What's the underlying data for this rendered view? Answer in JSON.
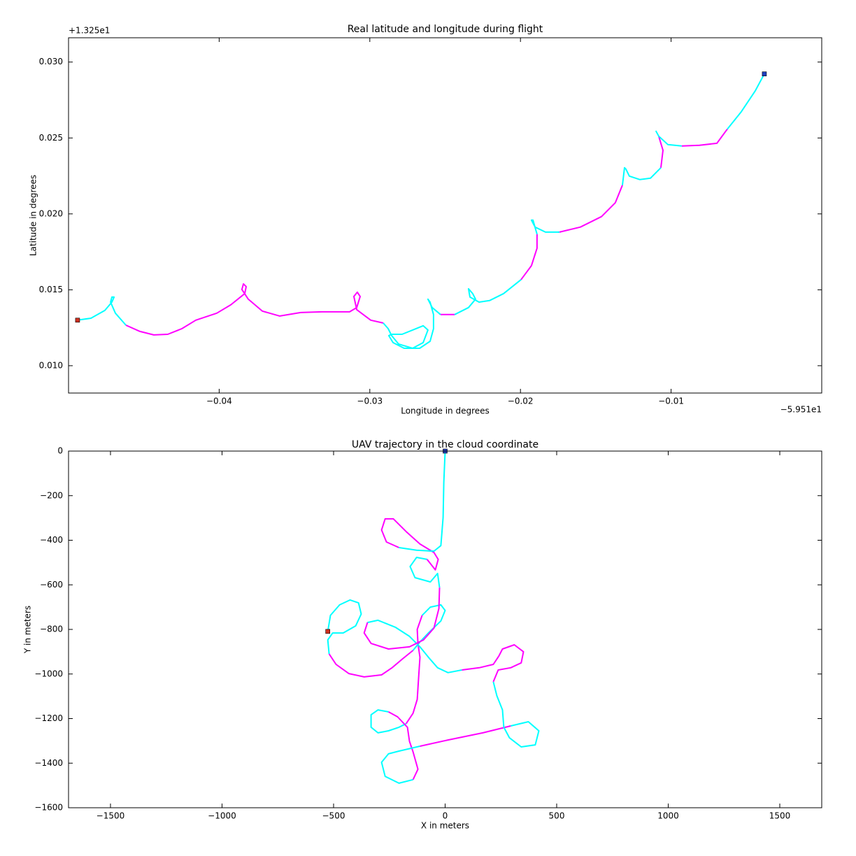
{
  "chart_data": [
    {
      "type": "line",
      "title": "Real latitude and longitude during flight",
      "xlabel": "Longitude in degrees",
      "ylabel": "Latitude in degrees",
      "x_offset_label": "−5.951e1",
      "y_offset_label": "+1.325e1",
      "xlim": [
        -0.05,
        0
      ],
      "ylim": [
        0.0082,
        0.0316
      ],
      "xticks": [
        {
          "value": -0.04,
          "label": "−0.04"
        },
        {
          "value": -0.03,
          "label": "−0.03"
        },
        {
          "value": -0.02,
          "label": "−0.02"
        },
        {
          "value": -0.01,
          "label": "−0.01"
        }
      ],
      "yticks": [
        {
          "value": 0.01,
          "label": "0.010"
        },
        {
          "value": 0.015,
          "label": "0.015"
        },
        {
          "value": 0.02,
          "label": "0.020"
        },
        {
          "value": 0.025,
          "label": "0.025"
        },
        {
          "value": 0.03,
          "label": "0.030"
        }
      ],
      "start_marker_color": "#d03020",
      "end_marker_color": "#1f3fbf",
      "series": [
        {
          "color": "#00ffff",
          "x": [
            -0.0494,
            -0.04851,
            -0.04759,
            -0.04712,
            -0.04698,
            -0.04712,
            -0.04721,
            -0.04689,
            -0.04619
          ],
          "y": [
            0.013,
            0.01313,
            0.01364,
            0.01419,
            0.01452,
            0.01452,
            0.01419,
            0.01346,
            0.01267
          ]
        },
        {
          "color": "#ff00ff",
          "x": [
            -0.04619,
            -0.04526,
            -0.04434,
            -0.04341,
            -0.04248,
            -0.04155,
            -0.04016,
            -0.03923,
            -0.0383,
            -0.03821,
            -0.03839,
            -0.03849,
            -0.03807,
            -0.03714,
            -0.03598,
            -0.03459,
            -0.03319,
            -0.03134,
            -0.03087,
            -0.03064,
            -0.03083,
            -0.03106,
            -0.03087,
            -0.02994,
            -0.02911
          ],
          "y": [
            0.01267,
            0.01226,
            0.01203,
            0.01207,
            0.01244,
            0.013,
            0.01346,
            0.01401,
            0.01475,
            0.01521,
            0.01539,
            0.01502,
            0.01438,
            0.0136,
            0.01327,
            0.0135,
            0.01355,
            0.01355,
            0.01383,
            0.01456,
            0.01484,
            0.01456,
            0.01369,
            0.013,
            0.01281
          ]
        },
        {
          "color": "#00ffff",
          "x": [
            -0.02911,
            -0.02878,
            -0.02855,
            -0.02809,
            -0.02716,
            -0.02646,
            -0.02614,
            -0.02646,
            -0.02716,
            -0.02786,
            -0.02855,
            -0.02874,
            -0.02846,
            -0.02772,
            -0.02669,
            -0.026,
            -0.02577,
            -0.02577,
            -0.026,
            -0.02614,
            -0.02586,
            -0.0253
          ],
          "y": [
            0.01281,
            0.01244,
            0.01198,
            0.01143,
            0.01115,
            0.01152,
            0.01235,
            0.01263,
            0.01235,
            0.01207,
            0.01207,
            0.01198,
            0.01152,
            0.01115,
            0.01115,
            0.01161,
            0.01244,
            0.01337,
            0.01419,
            0.01438,
            0.01383,
            0.01337
          ]
        },
        {
          "color": "#ff00ff",
          "x": [
            -0.0253,
            -0.02437
          ],
          "y": [
            0.01337,
            0.01337
          ]
        },
        {
          "color": "#00ffff",
          "x": [
            -0.02437,
            -0.02345,
            -0.02298,
            -0.02317,
            -0.02345,
            -0.02335,
            -0.02275,
            -0.02205,
            -0.02112,
            -0.01996
          ],
          "y": [
            0.01337,
            0.01383,
            0.01438,
            0.01475,
            0.01507,
            0.01452,
            0.01419,
            0.01429,
            0.01475,
            0.01567
          ]
        },
        {
          "color": "#ff00ff",
          "x": [
            -0.01996,
            -0.01927,
            -0.0189,
            -0.0189
          ],
          "y": [
            0.01567,
            0.01659,
            0.01774,
            0.01866
          ]
        },
        {
          "color": "#00ffff",
          "x": [
            -0.0189,
            -0.01917,
            -0.01927,
            -0.01903,
            -0.01834,
            -0.01741
          ],
          "y": [
            0.01866,
            0.01959,
            0.01959,
            0.01913,
            0.0188,
            0.0188
          ]
        },
        {
          "color": "#ff00ff",
          "x": [
            -0.01741,
            -0.01602,
            -0.01462,
            -0.0137,
            -0.01323
          ],
          "y": [
            0.0188,
            0.01913,
            0.01982,
            0.02074,
            0.02189
          ]
        },
        {
          "color": "#00ffff",
          "x": [
            -0.01323,
            -0.01309,
            -0.013,
            -0.01277,
            -0.01207,
            -0.01137,
            -0.01068
          ],
          "y": [
            0.02189,
            0.02304,
            0.02295,
            0.02249,
            0.02226,
            0.02235,
            0.02304
          ]
        },
        {
          "color": "#ff00ff",
          "x": [
            -0.01068,
            -0.01054,
            -0.01082
          ],
          "y": [
            0.02304,
            0.02419,
            0.02512
          ]
        },
        {
          "color": "#00ffff",
          "x": [
            -0.01082,
            -0.011,
            -0.01082,
            -0.01021,
            -0.00929
          ],
          "y": [
            0.02512,
            0.02544,
            0.02512,
            0.02456,
            0.02447
          ]
        },
        {
          "color": "#ff00ff",
          "x": [
            -0.00929,
            -0.00812,
            -0.00696,
            -0.00627
          ],
          "y": [
            0.02447,
            0.02452,
            0.02465,
            0.02558
          ]
        },
        {
          "color": "#00ffff",
          "x": [
            -0.00627,
            -0.00534,
            -0.00441,
            -0.00381
          ],
          "y": [
            0.02558,
            0.02673,
            0.02811,
            0.02922
          ]
        }
      ]
    },
    {
      "type": "line",
      "title": "UAV trajectory in the cloud coordinate",
      "xlabel": "X in meters",
      "ylabel": "Y in meters",
      "xlim": [
        -1688,
        1688
      ],
      "ylim": [
        -1600,
        0
      ],
      "xticks": [
        {
          "value": -1500,
          "label": "−1500"
        },
        {
          "value": -1000,
          "label": "−1000"
        },
        {
          "value": -500,
          "label": "−500"
        },
        0,
        500,
        1000,
        1500
      ],
      "yticks": [
        {
          "value": -1600,
          "label": "−1600"
        },
        {
          "value": -1400,
          "label": "−1400"
        },
        {
          "value": -1200,
          "label": "−1200"
        },
        {
          "value": -1000,
          "label": "−1000"
        },
        {
          "value": -800,
          "label": "−800"
        },
        {
          "value": -600,
          "label": "−600"
        },
        {
          "value": -400,
          "label": "−400"
        },
        {
          "value": -200,
          "label": "−200"
        },
        0
      ],
      "start_marker_color": "#d03020",
      "end_marker_color": "#1f3fbf",
      "series": [
        {
          "color": "#00ffff",
          "x": [
            -526,
            -514,
            -473,
            -426,
            -388,
            -376,
            -401,
            -457,
            -504,
            -526,
            -520
          ],
          "y": [
            -809,
            -737,
            -690,
            -668,
            -681,
            -731,
            -784,
            -816,
            -816,
            -847,
            -910
          ]
        },
        {
          "color": "#ff00ff",
          "x": [
            -520,
            -489,
            -432,
            -363,
            -285,
            -238,
            -191,
            -144
          ],
          "y": [
            -910,
            -957,
            -998,
            -1013,
            -1004,
            -972,
            -932,
            -894
          ]
        },
        {
          "color": "#00ffff",
          "x": [
            -144,
            -113,
            -75,
            -19,
            0,
            -19,
            -66,
            -103
          ],
          "y": [
            -894,
            -856,
            -816,
            -762,
            -715,
            -690,
            -700,
            -737
          ]
        },
        {
          "color": "#ff00ff",
          "x": [
            -103,
            -125,
            -122,
            -113,
            -119,
            -125,
            -144,
            -175
          ],
          "y": [
            -737,
            -800,
            -863,
            -925,
            -1020,
            -1114,
            -1176,
            -1223
          ]
        },
        {
          "color": "#00ffff",
          "x": [
            -175,
            -207,
            -254,
            -301,
            -332,
            -332,
            -301,
            -254
          ],
          "y": [
            -1223,
            -1239,
            -1255,
            -1264,
            -1239,
            -1183,
            -1161,
            -1170
          ]
        },
        {
          "color": "#ff00ff",
          "x": [
            -254,
            -213,
            -169,
            -160,
            -144,
            -122,
            -144
          ],
          "y": [
            -1170,
            -1192,
            -1239,
            -1302,
            -1349,
            -1427,
            -1474
          ]
        },
        {
          "color": "#00ffff",
          "x": [
            -144,
            -207,
            -269,
            -285,
            -254,
            -207,
            -113
          ],
          "y": [
            -1474,
            -1490,
            -1459,
            -1396,
            -1358,
            -1346,
            -1324
          ]
        },
        {
          "color": "#ff00ff",
          "x": [
            -113,
            13,
            169,
            294
          ],
          "y": [
            -1324,
            -1296,
            -1264,
            -1233
          ]
        },
        {
          "color": "#00ffff",
          "x": [
            294,
            373,
            420,
            404,
            341,
            288,
            263,
            257,
            232,
            216
          ],
          "y": [
            -1233,
            -1214,
            -1255,
            -1318,
            -1327,
            -1286,
            -1239,
            -1161,
            -1098,
            -1035
          ]
        },
        {
          "color": "#ff00ff",
          "x": [
            216,
            238,
            294,
            341,
            351,
            310,
            257,
            241,
            216,
            153,
            75
          ],
          "y": [
            -1035,
            -982,
            -972,
            -950,
            -900,
            -869,
            -888,
            -919,
            -957,
            -972,
            -982
          ]
        },
        {
          "color": "#00ffff",
          "x": [
            75,
            13,
            -34,
            -75,
            -113,
            -160,
            -222,
            -301,
            -348
          ],
          "y": [
            -982,
            -994,
            -972,
            -925,
            -878,
            -831,
            -791,
            -759,
            -769
          ]
        },
        {
          "color": "#ff00ff",
          "x": [
            -348,
            -363,
            -332,
            -254,
            -160,
            -97,
            -50,
            -28,
            -25
          ],
          "y": [
            -769,
            -816,
            -863,
            -888,
            -878,
            -847,
            -794,
            -706,
            -612
          ]
        },
        {
          "color": "#00ffff",
          "x": [
            -25,
            -34,
            -66,
            -135,
            -157,
            -128,
            -81
          ],
          "y": [
            -612,
            -549,
            -587,
            -568,
            -518,
            -477,
            -486
          ]
        },
        {
          "color": "#ff00ff",
          "x": [
            -81,
            -44,
            -31,
            -50,
            -113,
            -175,
            -232,
            -269,
            -285,
            -263,
            -207
          ],
          "y": [
            -486,
            -533,
            -486,
            -455,
            -417,
            -361,
            -304,
            -304,
            -354,
            -408,
            -433
          ]
        },
        {
          "color": "#00ffff",
          "x": [
            -207,
            -128,
            -50,
            -19,
            -9,
            -6,
            0
          ],
          "y": [
            -433,
            -445,
            -449,
            -424,
            -298,
            -141,
            0
          ]
        }
      ]
    }
  ]
}
